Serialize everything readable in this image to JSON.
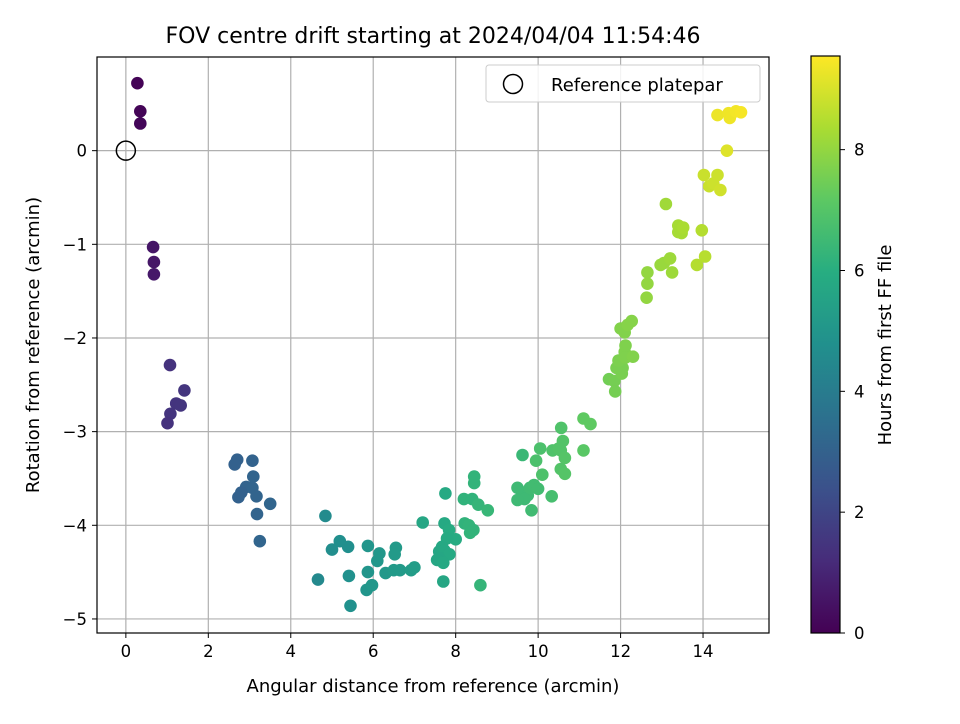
{
  "chart_data": {
    "type": "scatter",
    "title": "FOV centre drift starting at 2024/04/04 11:54:46",
    "xlabel": "Angular distance from reference (arcmin)",
    "ylabel": "Rotation from reference (arcmin)",
    "xlim": [
      -0.7,
      15.6
    ],
    "ylim": [
      -5.15,
      1.0
    ],
    "xticks": [
      0,
      2,
      4,
      6,
      8,
      10,
      12,
      14
    ],
    "yticks": [
      0,
      -1,
      -2,
      -3,
      -4,
      -5
    ],
    "grid": true,
    "legend": {
      "position": "top-right",
      "entries": [
        "Reference platepar"
      ]
    },
    "reference_point": {
      "x": 0,
      "y": 0
    },
    "colorbar": {
      "label": "Hours from first FF file",
      "range": [
        0,
        9.55
      ],
      "ticks": [
        0,
        2,
        4,
        6,
        8
      ],
      "colormap": "viridis"
    },
    "points": [
      [
        0.28,
        0.72,
        0.05
      ],
      [
        0.35,
        0.42,
        0.1
      ],
      [
        0.35,
        0.29,
        0.15
      ],
      [
        0.66,
        -1.03,
        0.55
      ],
      [
        0.68,
        -1.19,
        0.6
      ],
      [
        0.68,
        -1.32,
        0.65
      ],
      [
        1.07,
        -2.29,
        1.4
      ],
      [
        1.42,
        -2.56,
        1.5
      ],
      [
        1.22,
        -2.7,
        1.45
      ],
      [
        1.33,
        -2.72,
        1.5
      ],
      [
        1.08,
        -2.81,
        1.45
      ],
      [
        1.01,
        -2.91,
        1.4
      ],
      [
        2.7,
        -3.3,
        3.0
      ],
      [
        2.64,
        -3.35,
        3.0
      ],
      [
        3.07,
        -3.31,
        3.05
      ],
      [
        3.09,
        -3.48,
        3.1
      ],
      [
        2.92,
        -3.59,
        3.05
      ],
      [
        3.07,
        -3.6,
        3.1
      ],
      [
        2.8,
        -3.65,
        3.0
      ],
      [
        2.73,
        -3.7,
        3.0
      ],
      [
        3.17,
        -3.69,
        3.1
      ],
      [
        3.5,
        -3.77,
        3.15
      ],
      [
        3.18,
        -3.88,
        3.1
      ],
      [
        3.25,
        -4.17,
        3.15
      ],
      [
        4.84,
        -3.9,
        4.6
      ],
      [
        4.66,
        -4.58,
        4.5
      ],
      [
        5.0,
        -4.26,
        4.7
      ],
      [
        5.19,
        -4.17,
        4.75
      ],
      [
        5.39,
        -4.23,
        4.75
      ],
      [
        5.41,
        -4.54,
        4.8
      ],
      [
        5.45,
        -4.86,
        4.8
      ],
      [
        5.87,
        -4.22,
        5.0
      ],
      [
        6.15,
        -4.3,
        5.05
      ],
      [
        6.1,
        -4.38,
        5.05
      ],
      [
        5.87,
        -4.5,
        5.0
      ],
      [
        6.3,
        -4.51,
        5.1
      ],
      [
        5.84,
        -4.69,
        5.0
      ],
      [
        5.97,
        -4.64,
        5.05
      ],
      [
        6.55,
        -4.24,
        5.2
      ],
      [
        6.52,
        -4.31,
        5.2
      ],
      [
        6.5,
        -4.48,
        5.2
      ],
      [
        6.65,
        -4.48,
        5.2
      ],
      [
        6.92,
        -4.48,
        5.25
      ],
      [
        7.0,
        -4.45,
        5.3
      ],
      [
        7.2,
        -3.97,
        5.7
      ],
      [
        7.75,
        -3.66,
        5.8
      ],
      [
        7.73,
        -3.98,
        5.8
      ],
      [
        7.84,
        -4.05,
        5.9
      ],
      [
        8.0,
        -4.15,
        5.9
      ],
      [
        7.79,
        -4.14,
        5.85
      ],
      [
        7.67,
        -4.23,
        5.75
      ],
      [
        7.6,
        -4.28,
        5.7
      ],
      [
        7.73,
        -4.27,
        5.75
      ],
      [
        7.85,
        -4.31,
        5.8
      ],
      [
        7.6,
        -4.35,
        5.7
      ],
      [
        7.55,
        -4.37,
        5.7
      ],
      [
        7.7,
        -4.4,
        5.75
      ],
      [
        7.7,
        -4.6,
        5.7
      ],
      [
        8.2,
        -3.72,
        6.2
      ],
      [
        8.4,
        -3.72,
        6.2
      ],
      [
        8.45,
        -3.55,
        6.25
      ],
      [
        8.45,
        -3.48,
        6.25
      ],
      [
        8.55,
        -3.78,
        6.3
      ],
      [
        8.78,
        -3.84,
        6.35
      ],
      [
        8.22,
        -3.98,
        6.2
      ],
      [
        8.32,
        -4.0,
        6.25
      ],
      [
        8.43,
        -4.05,
        6.25
      ],
      [
        8.35,
        -4.08,
        6.25
      ],
      [
        8.6,
        -4.64,
        6.3
      ],
      [
        9.62,
        -3.25,
        6.4
      ],
      [
        9.5,
        -3.6,
        6.5
      ],
      [
        9.62,
        -3.65,
        6.5
      ],
      [
        9.75,
        -3.68,
        6.5
      ],
      [
        9.67,
        -3.72,
        6.5
      ],
      [
        9.5,
        -3.73,
        6.5
      ],
      [
        9.8,
        -3.6,
        6.55
      ],
      [
        9.9,
        -3.57,
        6.6
      ],
      [
        10.0,
        -3.61,
        6.6
      ],
      [
        9.84,
        -3.84,
        6.55
      ],
      [
        10.33,
        -3.69,
        6.7
      ],
      [
        10.05,
        -3.18,
        6.8
      ],
      [
        9.95,
        -3.31,
        6.8
      ],
      [
        10.1,
        -3.46,
        6.85
      ],
      [
        10.35,
        -3.2,
        6.9
      ],
      [
        10.55,
        -3.2,
        6.95
      ],
      [
        10.6,
        -3.1,
        6.95
      ],
      [
        10.56,
        -2.96,
        6.9
      ],
      [
        10.5,
        -3.18,
        6.95
      ],
      [
        10.65,
        -3.28,
        7.0
      ],
      [
        10.55,
        -3.4,
        6.95
      ],
      [
        10.65,
        -3.45,
        7.0
      ],
      [
        11.1,
        -2.86,
        7.2
      ],
      [
        11.27,
        -2.92,
        7.2
      ],
      [
        11.1,
        -3.2,
        7.1
      ],
      [
        11.72,
        -2.44,
        7.5
      ],
      [
        11.85,
        -2.46,
        7.55
      ],
      [
        11.87,
        -2.57,
        7.55
      ],
      [
        12.03,
        -2.38,
        7.6
      ],
      [
        12.05,
        -2.32,
        7.6
      ],
      [
        11.9,
        -2.32,
        7.6
      ],
      [
        11.95,
        -2.24,
        7.65
      ],
      [
        12.1,
        -2.15,
        7.7
      ],
      [
        12.12,
        -2.21,
        7.7
      ],
      [
        12.3,
        -2.2,
        7.75
      ],
      [
        12.12,
        -2.08,
        7.7
      ],
      [
        12.0,
        -1.9,
        7.75
      ],
      [
        12.1,
        -1.94,
        7.75
      ],
      [
        12.17,
        -1.86,
        7.8
      ],
      [
        12.27,
        -1.82,
        7.8
      ],
      [
        12.65,
        -1.3,
        8.0
      ],
      [
        12.65,
        -1.42,
        8.0
      ],
      [
        12.63,
        -1.57,
        8.0
      ],
      [
        12.97,
        -1.22,
        8.1
      ],
      [
        13.05,
        -1.2,
        8.1
      ],
      [
        13.2,
        -1.15,
        8.15
      ],
      [
        13.25,
        -1.3,
        8.15
      ],
      [
        13.1,
        -0.57,
        8.2
      ],
      [
        13.4,
        -0.8,
        8.3
      ],
      [
        13.4,
        -0.87,
        8.3
      ],
      [
        13.48,
        -0.88,
        8.3
      ],
      [
        13.52,
        -0.82,
        8.35
      ],
      [
        13.97,
        -0.85,
        8.5
      ],
      [
        13.85,
        -1.22,
        8.5
      ],
      [
        14.05,
        -1.13,
        8.55
      ],
      [
        14.15,
        -0.38,
        8.8
      ],
      [
        14.02,
        -0.26,
        8.8
      ],
      [
        14.35,
        -0.26,
        8.85
      ],
      [
        14.25,
        -0.35,
        8.85
      ],
      [
        14.42,
        -0.42,
        8.9
      ],
      [
        14.58,
        0.0,
        9.1
      ],
      [
        14.35,
        0.38,
        9.3
      ],
      [
        14.62,
        0.4,
        9.35
      ],
      [
        14.65,
        0.35,
        9.35
      ],
      [
        14.8,
        0.42,
        9.4
      ],
      [
        14.92,
        0.41,
        9.45
      ]
    ]
  }
}
